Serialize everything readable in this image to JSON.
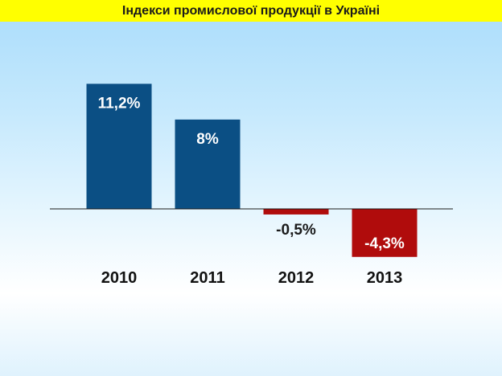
{
  "title": "Індекси промислової продукції в Україні",
  "colors": {
    "title_bg": "#ffff00",
    "positive_bar": "#0b4f84",
    "negative_bar": "#b00c0c",
    "axis": "#1a1a1a"
  },
  "chart_data": {
    "type": "bar",
    "title": "Індекси промислової продукції в Україні",
    "categories": [
      "2010",
      "2011",
      "2012",
      "2013"
    ],
    "values": [
      11.2,
      8,
      -0.5,
      -4.3
    ],
    "data_labels": [
      "11,2%",
      "8%",
      "-0,5%",
      "-4,3%"
    ],
    "xlabel": "",
    "ylabel": "",
    "ylim": [
      -4.3,
      11.2
    ],
    "grid": false,
    "legend": "none"
  }
}
